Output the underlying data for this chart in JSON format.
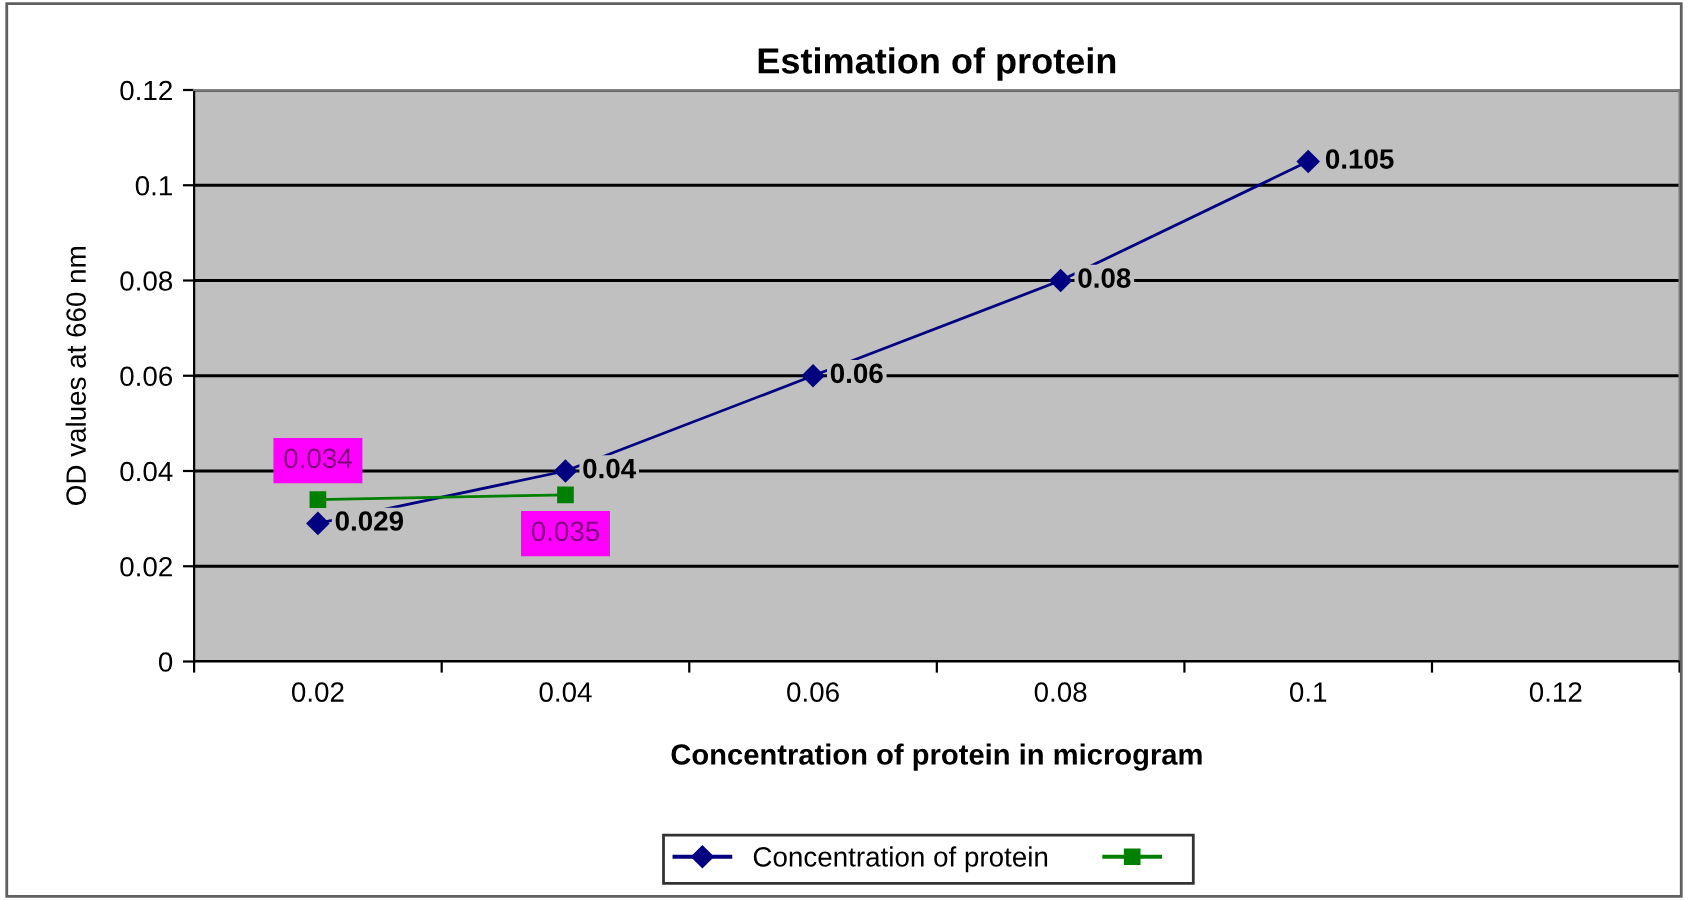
{
  "chart_data": {
    "type": "line",
    "title": "Estimation of protein",
    "xlabel": "Concentration of protein in microgram",
    "ylabel": "OD values at 660 nm",
    "categories": [
      "0.02",
      "0.04",
      "0.06",
      "0.08",
      "0.1",
      "0.12"
    ],
    "series": [
      {
        "name": "Concentration of protein",
        "color": "#000080",
        "marker": "diamond",
        "values": [
          0.029,
          0.04,
          0.06,
          0.08,
          0.105,
          null
        ]
      },
      {
        "color": "#008000",
        "marker": "square",
        "values": [
          0.034,
          0.035,
          null,
          null,
          null,
          null
        ]
      }
    ],
    "ylim": [
      0,
      0.12
    ],
    "yticks": [
      0,
      0.02,
      0.04,
      0.06,
      0.08,
      0.1,
      0.12
    ],
    "grid": "y",
    "legend": "bottom",
    "data_labels": true,
    "line_style": "solid"
  }
}
